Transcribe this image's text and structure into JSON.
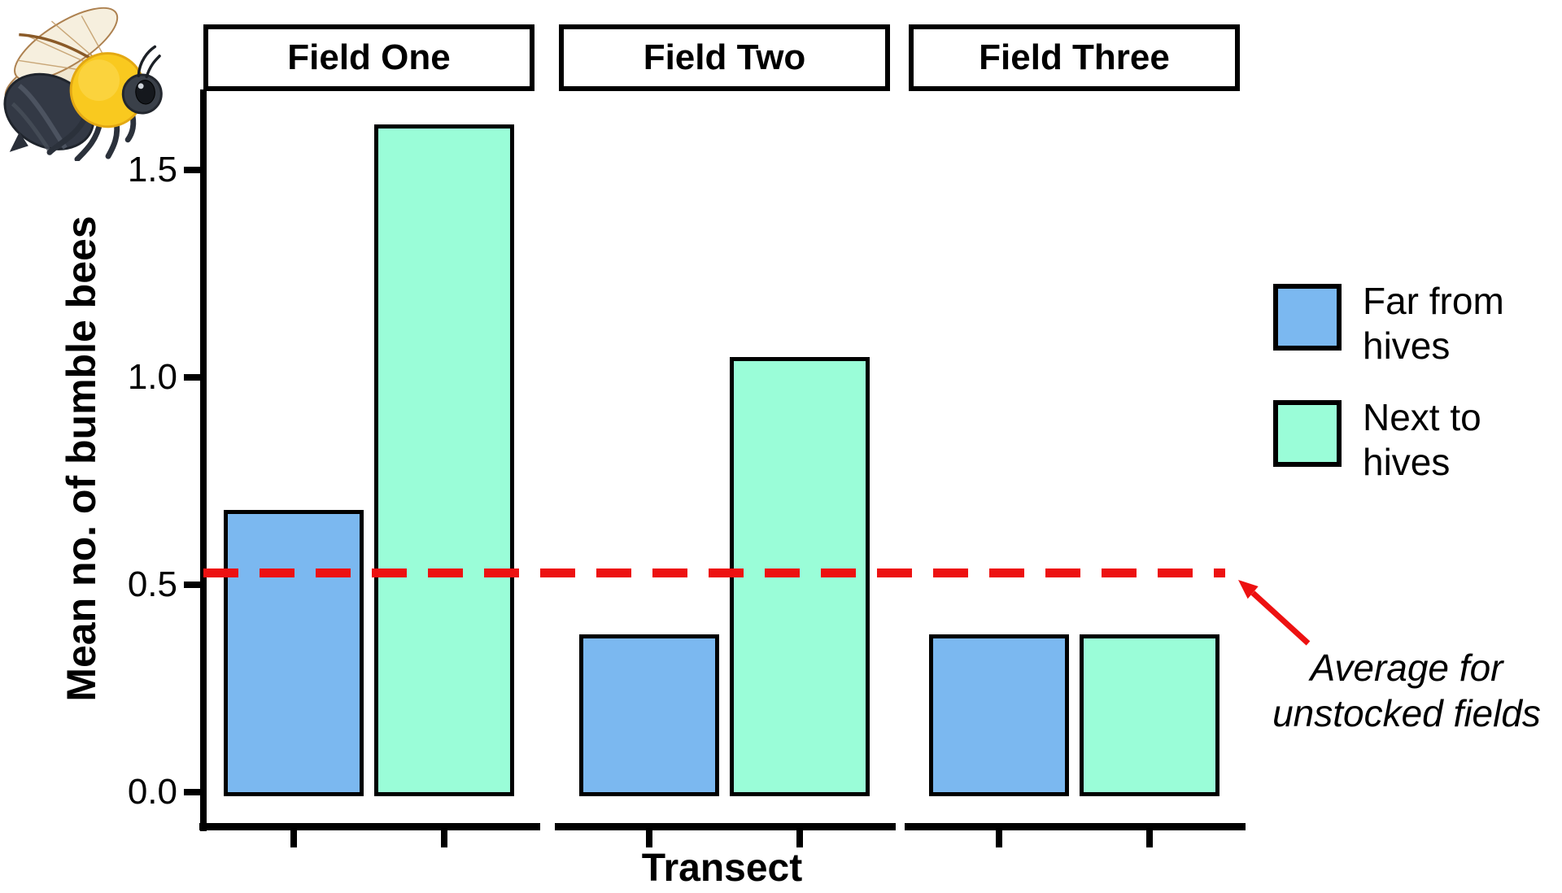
{
  "figure": {
    "background": "#FFFFFF",
    "bee_icon": "bumblebee-illustration"
  },
  "chart_data": {
    "type": "bar",
    "faceted": true,
    "facets": [
      "Field One",
      "Field Two",
      "Field Three"
    ],
    "xlabel": "Transect",
    "ylabel": "Mean no. of bumble bees",
    "ylim": [
      0,
      1.69
    ],
    "yticks": [
      1.5,
      1.0,
      0.5,
      0.0
    ],
    "ytick_labels": [
      "1.5",
      "1.0",
      "0.5",
      "0.0"
    ],
    "grid": false,
    "legend_position": "right",
    "bar_outline": "#000000",
    "axis_color": "#000000",
    "series": [
      {
        "name": "Far from hives",
        "color": "#7BB8F0",
        "values": [
          0.68,
          0.38,
          0.38
        ]
      },
      {
        "name": "Next to hives",
        "color": "#9AFDD8",
        "values": [
          1.61,
          1.05,
          0.38
        ]
      }
    ],
    "reference_line": {
      "value": 0.53,
      "color": "#ED1111",
      "style": "dashed",
      "label": "Average for unstocked fields"
    },
    "annotation": {
      "lines": [
        "Average for",
        "unstocked fields"
      ]
    }
  }
}
